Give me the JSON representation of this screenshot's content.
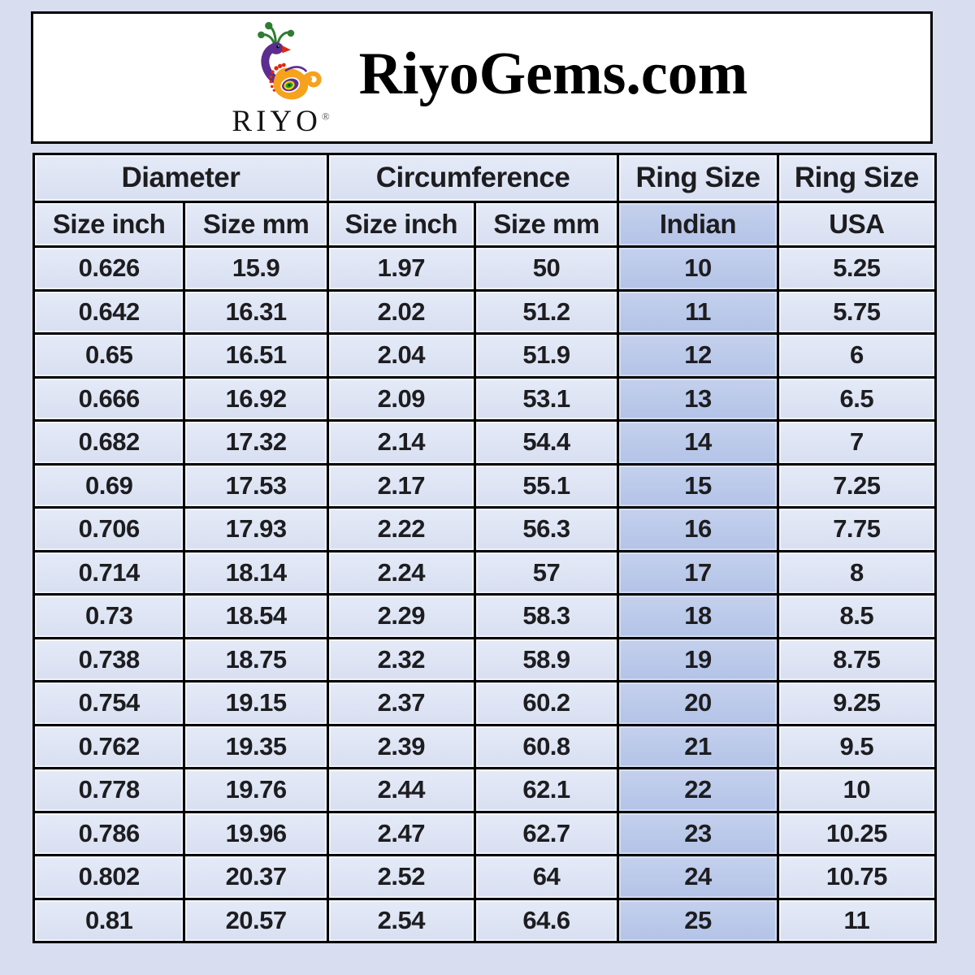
{
  "page": {
    "background_color": "#d8def0",
    "border_color": "#000000"
  },
  "header": {
    "brand": "RiyoGems.com",
    "logo": {
      "icon": "peacock-icon",
      "wordmark": "RIYO",
      "registered_mark": "®",
      "colors": {
        "purple": "#5b2d8f",
        "orange": "#f6a21d",
        "green": "#2e7d32",
        "red": "#e02810",
        "yellow": "#ffd400"
      }
    },
    "box_background": "#ffffff"
  },
  "chart_data": {
    "type": "table",
    "title": "RiyoGems.com ring size conversion chart",
    "column_groups": [
      {
        "label": "Diameter",
        "span": 2
      },
      {
        "label": "Circumference",
        "span": 2
      },
      {
        "label": "Ring Size",
        "span": 1
      },
      {
        "label": "Ring Size",
        "span": 1
      }
    ],
    "columns": [
      "Size inch",
      "Size mm",
      "Size inch",
      "Size mm",
      "Indian",
      "USA"
    ],
    "highlight_column_index": 4,
    "rows": [
      [
        "0.626",
        "15.9",
        "1.97",
        "50",
        "10",
        "5.25"
      ],
      [
        "0.642",
        "16.31",
        "2.02",
        "51.2",
        "11",
        "5.75"
      ],
      [
        "0.65",
        "16.51",
        "2.04",
        "51.9",
        "12",
        "6"
      ],
      [
        "0.666",
        "16.92",
        "2.09",
        "53.1",
        "13",
        "6.5"
      ],
      [
        "0.682",
        "17.32",
        "2.14",
        "54.4",
        "14",
        "7"
      ],
      [
        "0.69",
        "17.53",
        "2.17",
        "55.1",
        "15",
        "7.25"
      ],
      [
        "0.706",
        "17.93",
        "2.22",
        "56.3",
        "16",
        "7.75"
      ],
      [
        "0.714",
        "18.14",
        "2.24",
        "57",
        "17",
        "8"
      ],
      [
        "0.73",
        "18.54",
        "2.29",
        "58.3",
        "18",
        "8.5"
      ],
      [
        "0.738",
        "18.75",
        "2.32",
        "58.9",
        "19",
        "8.75"
      ],
      [
        "0.754",
        "19.15",
        "2.37",
        "60.2",
        "20",
        "9.25"
      ],
      [
        "0.762",
        "19.35",
        "2.39",
        "60.8",
        "21",
        "9.5"
      ],
      [
        "0.778",
        "19.76",
        "2.44",
        "62.1",
        "22",
        "10"
      ],
      [
        "0.786",
        "19.96",
        "2.47",
        "62.7",
        "23",
        "10.25"
      ],
      [
        "0.802",
        "20.37",
        "2.52",
        "64",
        "24",
        "10.75"
      ],
      [
        "0.81",
        "20.57",
        "2.54",
        "64.6",
        "25",
        "11"
      ]
    ],
    "colors": {
      "cell_background": "#dce2f2",
      "highlight_background": "#b9c8e9",
      "border": "#000000",
      "text": "#1d1d20"
    }
  }
}
